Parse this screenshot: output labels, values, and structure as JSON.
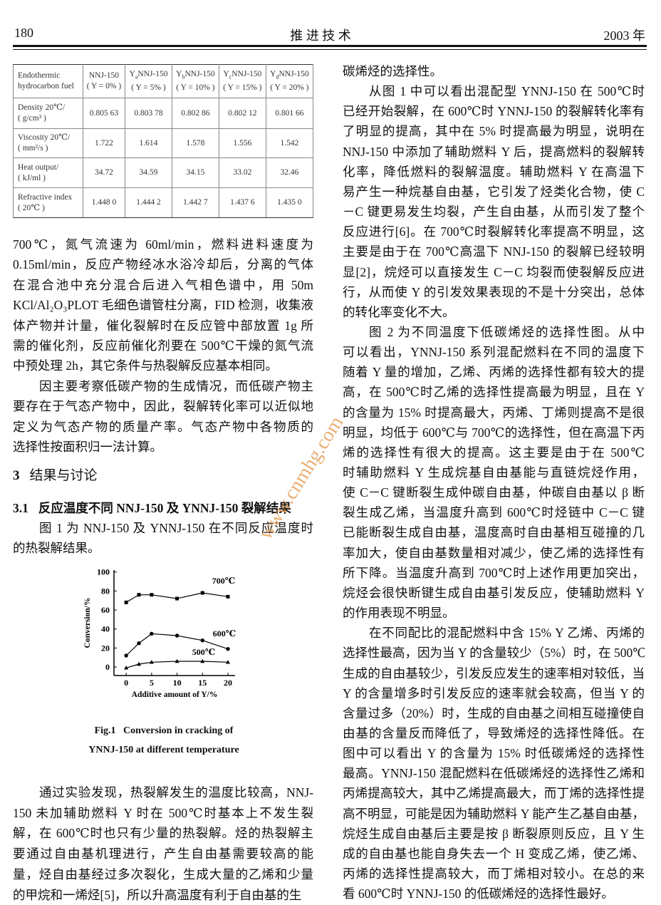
{
  "header": {
    "page": "180",
    "journal": "推 进 技 术",
    "year": "2003 年"
  },
  "table": {
    "corner": [
      "Endothermic",
      "hydrocarbon fuel"
    ],
    "columns": [
      {
        "prefix": "",
        "sub": "",
        "name": "NNJ-150",
        "cond": "( Y = 0% )"
      },
      {
        "prefix": "Y",
        "sub": "a",
        "name": "NNJ-150",
        "cond": "( Y = 5% )"
      },
      {
        "prefix": "Y",
        "sub": "b",
        "name": "NNJ-150",
        "cond": "( Y = 10% )"
      },
      {
        "prefix": "Y",
        "sub": "c",
        "name": "NNJ-150",
        "cond": "( Y = 15% )"
      },
      {
        "prefix": "Y",
        "sub": "d",
        "name": "NNJ-150",
        "cond": "( Y = 20% )"
      }
    ],
    "rows": [
      {
        "label": [
          "Density 20℃/",
          "( g/cm³ )"
        ],
        "values": [
          "0.805 63",
          "0.803 78",
          "0.802 86",
          "0.802 12",
          "0.801 66"
        ]
      },
      {
        "label": [
          "Viscosity 20℃/",
          "( mm²/s )"
        ],
        "values": [
          "1.722",
          "1.614",
          "1.578",
          "1.556",
          "1.542"
        ]
      },
      {
        "label": [
          "Heat output/",
          "( kJ/ml )"
        ],
        "values": [
          "34.72",
          "34.59",
          "34.15",
          "33.02",
          "32.46"
        ]
      },
      {
        "label": [
          "Refractive index",
          "( 20℃ )"
        ],
        "values": [
          "1.448 0",
          "1.444 2",
          "1.442 7",
          "1.437 6",
          "1.435 0"
        ]
      }
    ]
  },
  "left": {
    "p1": {
      "lines": [
        "700℃，氮气流速为 60ml/min，燃料进料速度为",
        "0.15ml/min，反应产物经冰水浴冷却后，分离的气体",
        "在混合池中充分混合后进入气相色谱中，用 50m",
        "KCl/Al₂O₃PLOT 毛细色谱管柱分离，FID 检测，收集液",
        "体产物并计量，催化裂解时在反应管中部放置 1g 所",
        "需的催化剂，反应前催化剂要在 500℃干燥的氮气流",
        "中预处理 2h，其它条件与热裂解反应基本相同。"
      ]
    },
    "p2": {
      "lines": [
        "因主要考察低碳产物的生成情况，而低碳产物主",
        "要存在于气态产物中，因此，裂解转化率可以近似地",
        "定义为气态产物的质量产率。气态产物中各物质的",
        "选择性按面积归一法计算。"
      ]
    },
    "section_heading": {
      "number": "3",
      "title": "结果与讨论"
    },
    "subsection_heading": {
      "number": "3.1",
      "title": "反应温度不同 NNJ-150 及 YNNJ-150 裂解结果"
    },
    "p3": {
      "lines": [
        "图 1 为 NNJ-150 及 YNNJ-150 在不同反应温度时",
        "的热裂解结果。"
      ]
    },
    "figure_caption": {
      "lines": [
        "Fig.1   Conversion in cracking of",
        "YNNJ-150 at different temperature"
      ]
    },
    "p4": {
      "lines": [
        "通过实验发现，热裂解发生的温度比较高，NNJ-",
        "150 未加辅助燃料 Y 时在 500℃时基本上不发生裂",
        "解，在 600℃时也只有少量的热裂解。烃的热裂解主",
        "要通过自由基机理进行，产生自由基需要较高的能",
        "量，烃自由基经过多次裂化，生成大量的乙烯和少量",
        "的甲烷和一烯烃[5]，所以升高温度有利于自由基的生"
      ]
    }
  },
  "right": {
    "paragraphs": [
      {
        "lines": [
          "碳烯烃的选择性。"
        ]
      },
      {
        "lines": [
          "从图 1 中可以看出混配型 YNNJ-150 在 500℃时",
          "已经开始裂解，在 600℃时 YNNJ-150 的裂解转化率有",
          "了明显的提高，其中在 5% 时提高最为明显，说明在",
          "NNJ-150 中添加了辅助燃料 Y 后，提高燃料的裂解转",
          "化率，降低燃料的裂解温度。辅助燃料 Y 在高温下",
          "易产生一种烷基自由基，它引发了烃类化合物，使 C",
          "－C 键更易发生均裂，产生自由基，从而引发了整个",
          "反应进行[6]。在 700℃时裂解转化率提高不明显，这",
          "主要是由于在 700℃高温下 NNJ-150 的裂解已经较明",
          "显[2]，烷烃可以直接发生 C－C 均裂而使裂解反应进",
          "行，从而使 Y 的引发效果表现的不是十分突出，总体",
          "的转化率变化不大。"
        ]
      },
      {
        "lines": [
          "图 2 为不同温度下低碳烯烃的选择性图。从中",
          "可以看出，YNNJ-150 系列混配燃料在不同的温度下",
          "随着 Y 量的增加，乙烯、丙烯的选择性都有较大的提",
          "高，在 500℃时乙烯的选择性提高最为明显，且在 Y",
          "的含量为 15% 时提高最大，丙烯、丁烯则提高不是很",
          "明显，均低于 600℃与 700℃的选择性，但在高温下丙",
          "烯的选择性有很大的提高。这主要是由于在 500℃",
          "时辅助燃料 Y 生成烷基自由基能与直链烷烃作用，",
          "使 C－C 键断裂生成仲碳自由基，仲碳自由基以 β 断",
          "裂生成乙烯，当温度升高到 600℃时烃链中 C－C 键",
          "已能断裂生成自由基，温度高时自由基相互碰撞的几",
          "率加大，使自由基数量相对减少，使乙烯的选择性有",
          "所下降。当温度升高到 700℃时上述作用更加突出，",
          "烷烃会很快断键生成自由基引发反应，使辅助燃料 Y",
          "的作用表现不明显。"
        ]
      },
      {
        "lines": [
          "在不同配比的混配燃料中含 15% Y 乙烯、丙烯的",
          "选择性最高，因为当 Y 的含量较少（5%）时，在 500℃时",
          "生成的自由基较少，引发反应发生的速率相对较低，当",
          "Y 的含量增多时引发反应的速率就会较高，但当 Y 的",
          "含量过多（20%）时，生成的自由基之间相互碰撞使自",
          "由基的含量反而降低了，导致烯烃的选择性降低。在",
          "图中可以看出 Y 的含量为 15% 时低碳烯烃的选择性",
          "最高。YNNJ-150 混配燃料在低碳烯烃的选择性乙烯和",
          "丙烯提高较大，其中乙烯提高最大，而丁烯的选择性提",
          "高不明显，可能是因为辅助燃料 Y 能产生乙基自由基，",
          "烷烃生成自由基后主要是按 β 断裂原则反应，且 Y 生",
          "成的自由基也能自身失去一个 H 变成乙烯，使乙烯、",
          "丙烯的选择性提高较大，而丁烯相对较小。在总的来",
          "看 600℃时 YNNJ-150 的低碳烯烃的选择性最好。"
        ]
      }
    ]
  },
  "watermark": "www.cnmhg.com",
  "chart_data": {
    "type": "line",
    "x_label": "Additive amount of Y/%",
    "y_label": "Conversion/%",
    "x": [
      0,
      2.5,
      5,
      10,
      15,
      20
    ],
    "xlim": [
      -2.4,
      21.4
    ],
    "xticks": [
      0,
      5,
      10,
      15,
      20
    ],
    "ylim": [
      -9,
      102
    ],
    "yticks": [
      0,
      20,
      40,
      60,
      80,
      100
    ],
    "series": [
      {
        "name": "700℃",
        "color": "#000000",
        "marker": "square",
        "values": [
          68,
          76,
          76,
          72,
          78,
          74
        ]
      },
      {
        "name": "600℃",
        "color": "#000000",
        "marker": "circle",
        "values": [
          12,
          25,
          35,
          33,
          28,
          19
        ]
      },
      {
        "name": "500℃",
        "color": "#000000",
        "marker": "triangle",
        "values": [
          -1,
          3,
          5,
          6,
          6,
          5
        ]
      }
    ]
  }
}
